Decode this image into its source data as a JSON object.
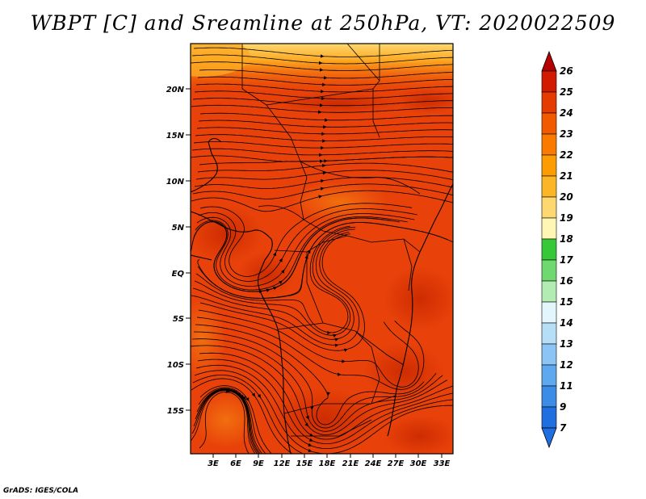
{
  "title": "WBPT [C] and Sreamline at 250hPa, VT: 2020022509",
  "footer": "GrADS: IGES/COLA",
  "map": {
    "lat_labels": [
      "20N",
      "15N",
      "10N",
      "5N",
      "EQ",
      "5S",
      "10S",
      "15S"
    ],
    "lon_labels": [
      "3E",
      "6E",
      "9E",
      "12E",
      "15E",
      "18E",
      "21E",
      "24E",
      "27E",
      "30E",
      "33E"
    ],
    "field": "WBPT",
    "dominant_value_range": [
      22,
      24
    ]
  },
  "colorbar": {
    "labels": [
      "26",
      "25",
      "24",
      "23",
      "22",
      "21",
      "20",
      "19",
      "18",
      "17",
      "16",
      "15",
      "14",
      "13",
      "12",
      "11",
      "9",
      "7"
    ],
    "colors": [
      "#b50000",
      "#d21a00",
      "#e43c00",
      "#f25a00",
      "#fa7a00",
      "#fc9c00",
      "#fdb528",
      "#fdd870",
      "#fff5b4",
      "#37c837",
      "#6fd96f",
      "#b3ecb3",
      "#e3f5fd",
      "#b7def7",
      "#8cc4f5",
      "#5ea8f0",
      "#3b8ce6",
      "#1f6fe0"
    ]
  }
}
